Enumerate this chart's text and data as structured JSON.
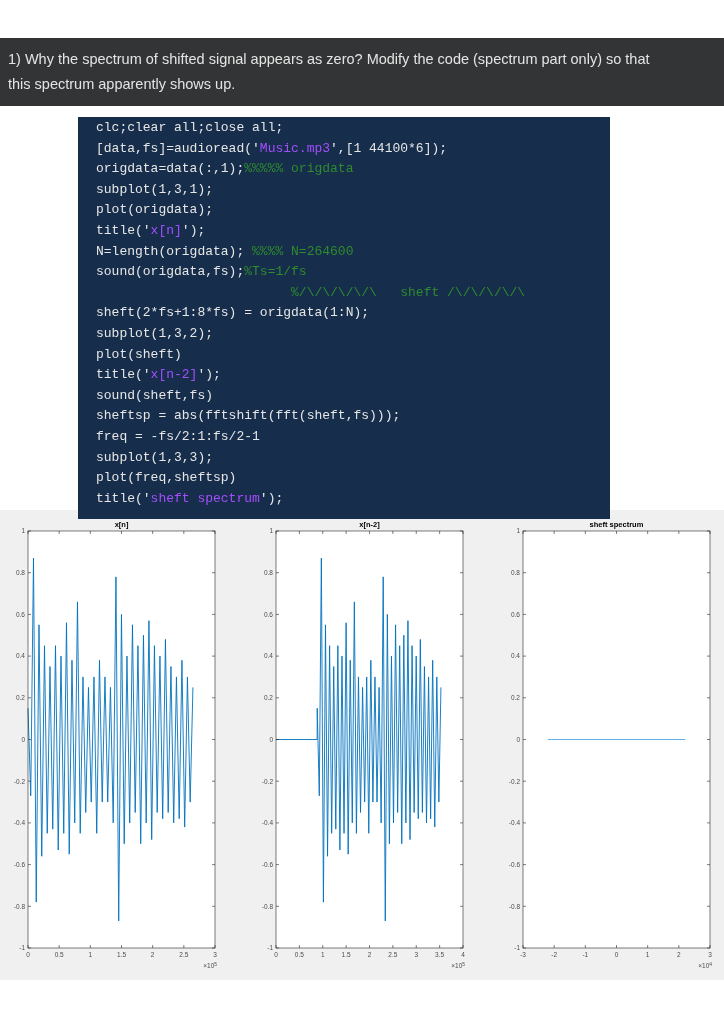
{
  "chart_data": [
    {
      "type": "other",
      "title": "1) Why the spectrum of shifted signal appears as zero? Modify the code (spectrum part only) so that this spectrum apparently shows up.",
      "annotations": [
        "clc;clear all;close all;",
        "[data,fs]=audioread('Music.mp3',[1 44100*6]);",
        "origdata=data(:,1);%%%%% origdata",
        "subplot(1,3,1);",
        "plot(origdata);",
        "title('x[n]');",
        "N=length(origdata); %%%% N=264600",
        "sound(origdata,fs);%Ts=1/fs",
        "                         %/\\/\\/\\/\\/\\   sheft /\\/\\/\\/\\/\\",
        "sheft(2*fs+1:8*fs) = origdata(1:N);",
        "subplot(1,3,2);",
        "plot(sheft)",
        "title('x[n-2]');",
        "sound(sheft,fs)",
        "sheftsp = abs(fftshift(fft(sheft,fs)));",
        "freq = -fs/2:1:fs/2-1",
        "subplot(1,3,3);",
        "plot(freq,sheftsp)",
        "title('sheft spectrum');"
      ]
    },
    {
      "type": "line",
      "title": "x[n]",
      "annotations": [
        "×10$^{5}$"
      ],
      "xlim": [
        0,
        3
      ],
      "xticks": [
        0,
        0.5,
        1,
        1.5,
        2,
        2.5,
        3
      ],
      "ylim": [
        -1,
        1
      ],
      "yticks": [
        -1,
        -0.8,
        -0.6,
        -0.4,
        -0.2,
        0,
        0.2,
        0.4,
        0.6,
        0.8,
        1
      ],
      "series": [
        {
          "color": "#0072bd",
          "x": [
            0,
            0.0441,
            0.0882,
            0.1323,
            0.1764,
            0.2205,
            0.2646,
            0.3087,
            0.3528,
            0.3969,
            0.441,
            0.4851,
            0.5292,
            0.5733,
            0.6174,
            0.6615,
            0.7056,
            0.7497,
            0.7938,
            0.8379,
            0.882,
            0.9261,
            0.9702,
            1.0143,
            1.0584,
            1.1025,
            1.1466,
            1.1907,
            1.2348,
            1.2789,
            1.323,
            1.3671,
            1.4112,
            1.4553,
            1.4994,
            1.5435,
            1.5876,
            1.6317,
            1.6758,
            1.7199,
            1.764,
            1.8081,
            1.8522,
            1.8963,
            1.9404,
            1.9845,
            2.0286,
            2.0727,
            2.1168,
            2.1609,
            2.205,
            2.2491,
            2.2932,
            2.3373,
            2.3814,
            2.4255,
            2.4696,
            2.5137,
            2.5578,
            2.6019,
            2.646
          ],
          "values": [
            0.15,
            -0.27,
            0.87,
            -0.78,
            0.55,
            -0.56,
            0.45,
            -0.45,
            0.35,
            -0.43,
            0.45,
            -0.53,
            0.4,
            -0.45,
            0.56,
            -0.55,
            0.38,
            -0.4,
            0.66,
            -0.45,
            0.3,
            -0.35,
            0.25,
            -0.3,
            0.3,
            -0.45,
            0.38,
            -0.3,
            0.3,
            -0.3,
            0.25,
            -0.4,
            0.78,
            -0.87,
            0.6,
            -0.5,
            0.4,
            -0.4,
            0.55,
            -0.35,
            0.45,
            -0.5,
            0.5,
            -0.4,
            0.57,
            -0.48,
            0.45,
            -0.35,
            0.4,
            -0.38,
            0.48,
            -0.35,
            0.35,
            -0.4,
            0.3,
            -0.38,
            0.38,
            -0.42,
            0.3,
            -0.3,
            0.25
          ]
        }
      ]
    },
    {
      "type": "line",
      "title": "x[n-2]",
      "annotations": [
        "×10$^{5}$"
      ],
      "xlim": [
        0,
        4
      ],
      "xticks": [
        0,
        0.5,
        1,
        1.5,
        2,
        2.5,
        3,
        3.5,
        4
      ],
      "ylim": [
        -1,
        1
      ],
      "yticks": [
        -1,
        -0.8,
        -0.6,
        -0.4,
        -0.2,
        0,
        0.2,
        0.4,
        0.6,
        0.8,
        1
      ],
      "series": [
        {
          "color": "#0072bd",
          "x": [
            0,
            0.88,
            0.882,
            0.9261,
            0.9702,
            1.0143,
            1.0584,
            1.1025,
            1.1466,
            1.1907,
            1.2348,
            1.2789,
            1.323,
            1.3671,
            1.4112,
            1.4553,
            1.4994,
            1.5435,
            1.5876,
            1.6317,
            1.6758,
            1.7199,
            1.764,
            1.8081,
            1.8522,
            1.8963,
            1.9404,
            1.9845,
            2.0286,
            2.0727,
            2.1168,
            2.1609,
            2.205,
            2.2491,
            2.2932,
            2.3373,
            2.3814,
            2.4255,
            2.4696,
            2.5137,
            2.5578,
            2.6019,
            2.646,
            2.6901,
            2.7342,
            2.7783,
            2.8224,
            2.8665,
            2.9106,
            2.9547,
            2.9988,
            3.0429,
            3.087,
            3.1311,
            3.1752,
            3.2193,
            3.2634,
            3.3075,
            3.3516,
            3.3957,
            3.4398,
            3.4839,
            3.528
          ],
          "values": [
            0,
            0,
            0.15,
            -0.27,
            0.87,
            -0.78,
            0.55,
            -0.56,
            0.45,
            -0.45,
            0.35,
            -0.43,
            0.45,
            -0.53,
            0.4,
            -0.45,
            0.56,
            -0.55,
            0.38,
            -0.4,
            0.66,
            -0.45,
            0.3,
            -0.35,
            0.25,
            -0.3,
            0.3,
            -0.45,
            0.38,
            -0.3,
            0.3,
            -0.3,
            0.25,
            -0.4,
            0.78,
            -0.87,
            0.6,
            -0.5,
            0.4,
            -0.4,
            0.55,
            -0.35,
            0.45,
            -0.5,
            0.5,
            -0.4,
            0.57,
            -0.48,
            0.45,
            -0.35,
            0.4,
            -0.38,
            0.48,
            -0.35,
            0.35,
            -0.4,
            0.3,
            -0.38,
            0.38,
            -0.42,
            0.3,
            -0.3,
            0.25
          ]
        }
      ]
    },
    {
      "type": "line",
      "title": "sheft spectrum",
      "annotations": [
        "×10$^{4}$"
      ],
      "xlim": [
        -3,
        3
      ],
      "xticks": [
        -3,
        -2,
        -1,
        0,
        1,
        2,
        3
      ],
      "ylim": [
        -1,
        1
      ],
      "yticks": [
        -1,
        -0.8,
        -0.6,
        -0.4,
        -0.2,
        0,
        0.2,
        0.4,
        0.6,
        0.8,
        1
      ],
      "series": [
        {
          "color": "#4da6e8",
          "x": [
            -2.205,
            2.205
          ],
          "values": [
            0,
            0
          ]
        }
      ]
    }
  ]
}
